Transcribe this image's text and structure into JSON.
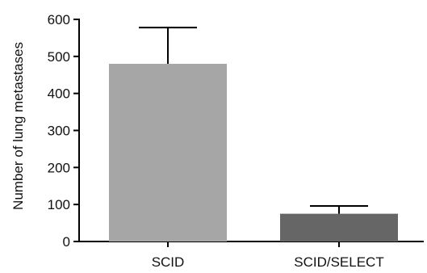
{
  "chart_data": {
    "type": "bar",
    "title": "",
    "xlabel": "",
    "ylabel": "Number of lung metastases",
    "categories": [
      "SCID",
      "SCID/SELECT"
    ],
    "values": [
      480,
      75
    ],
    "error_upper": [
      578,
      96
    ],
    "ylim": [
      0,
      600
    ],
    "yticks": [
      0,
      100,
      200,
      300,
      400,
      500,
      600
    ],
    "ytick_labels": [
      "0",
      "100",
      "200",
      "300",
      "400",
      "500",
      "600"
    ],
    "bar_colors": [
      "#a6a6a6",
      "#666666"
    ],
    "grid": false,
    "legend": "none"
  }
}
